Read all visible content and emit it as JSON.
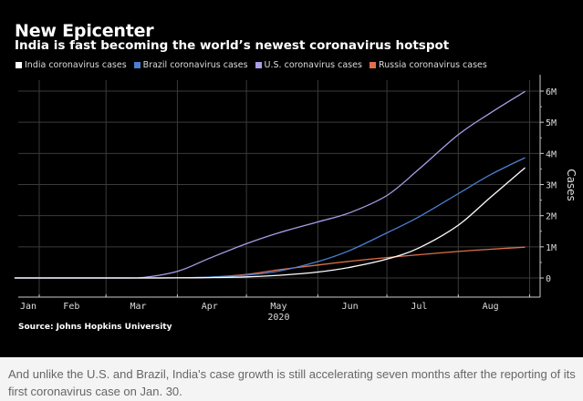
{
  "chart_data": {
    "type": "line",
    "title": "New Epicenter",
    "subtitle": "India is fast becoming the world’s newest coronavirus hotspot",
    "xlabel": "2020",
    "ylabel": "Cases",
    "ylim": [
      0,
      6000000
    ],
    "yticks": [
      {
        "value": 0,
        "label": "0"
      },
      {
        "value": 1000000,
        "label": "1M"
      },
      {
        "value": 2000000,
        "label": "2M"
      },
      {
        "value": 3000000,
        "label": "3M"
      },
      {
        "value": 4000000,
        "label": "4M"
      },
      {
        "value": 5000000,
        "label": "5M"
      },
      {
        "value": 6000000,
        "label": "6M"
      }
    ],
    "xticks": [
      "Jan",
      "Feb",
      "Mar",
      "Apr",
      "May",
      "Jun",
      "Jul",
      "Aug"
    ],
    "x_year_label": "2020",
    "grid": true,
    "legend_position": "top-left",
    "x": [
      "2020-01-22",
      "2020-02-01",
      "2020-03-01",
      "2020-03-15",
      "2020-04-01",
      "2020-04-15",
      "2020-05-01",
      "2020-05-15",
      "2020-06-01",
      "2020-06-15",
      "2020-07-01",
      "2020-07-15",
      "2020-08-01",
      "2020-08-15",
      "2020-08-30"
    ],
    "series": [
      {
        "name": "India coronavirus cases",
        "color": "#ffffff",
        "values": [
          0,
          0,
          3,
          107,
          1998,
          12380,
          35043,
          85940,
          190535,
          343091,
          604641,
          968876,
          1695988,
          2589682,
          3542733
        ]
      },
      {
        "name": "Brazil coronavirus cases",
        "color": "#4a7fd0",
        "values": [
          0,
          0,
          2,
          200,
          6836,
          28320,
          91589,
          220291,
          526447,
          888271,
          1448753,
          1966748,
          2707877,
          3317096,
          3862311
        ]
      },
      {
        "name": "U.S. coronavirus cases",
        "color": "#a99ee8",
        "values": [
          1,
          8,
          74,
          3499,
          213372,
          636350,
          1100000,
          1450000,
          1800000,
          2100000,
          2650000,
          3500000,
          4600000,
          5300000,
          5990000
        ]
      },
      {
        "name": "Russia coronavirus cases",
        "color": "#e0704a",
        "values": [
          0,
          2,
          2,
          63,
          2777,
          24490,
          114431,
          262843,
          414878,
          537210,
          654405,
          746369,
          850870,
          920719,
          990326
        ]
      }
    ]
  },
  "source": "Source: Johns Hopkins University",
  "caption": "And unlike the U.S. and Brazil, India's case growth is still accelerating seven months after the reporting of its first coronavirus case on Jan. 30."
}
